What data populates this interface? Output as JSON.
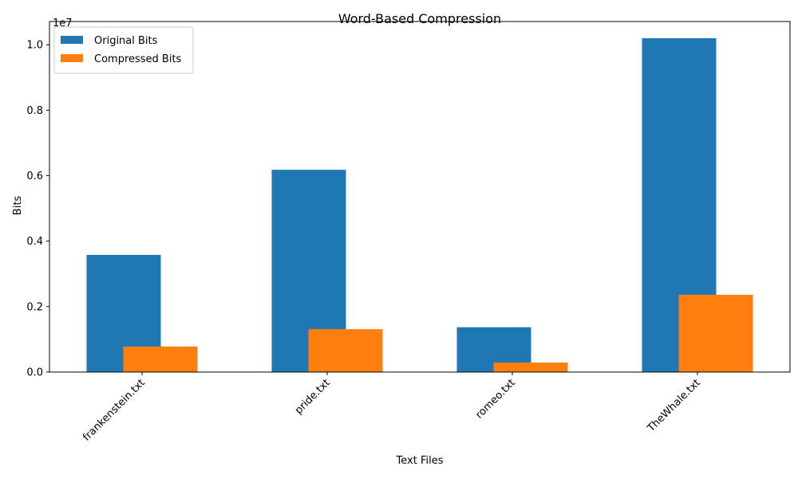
{
  "chart_data": {
    "type": "bar",
    "title": "Word-Based Compression",
    "xlabel": "Text Files",
    "ylabel": "Bits",
    "y_offset_label": "1e7",
    "y_scale": 10000000,
    "ylim": [
      0,
      10710000
    ],
    "yticks": [
      0,
      2000000,
      4000000,
      6000000,
      8000000,
      10000000
    ],
    "ytick_labels": [
      "0.0",
      "0.2",
      "0.4",
      "0.6",
      "0.8",
      "1.0"
    ],
    "categories": [
      "frankenstein.txt",
      "pride.txt",
      "romeo.txt",
      "TheWhale.txt"
    ],
    "series": [
      {
        "name": "Original Bits",
        "color": "#1f77b4",
        "values": [
          3580000,
          6180000,
          1370000,
          10200000
        ]
      },
      {
        "name": "Compressed Bits",
        "color": "#ff7f0e",
        "values": [
          780000,
          1310000,
          290000,
          2360000
        ]
      }
    ],
    "legend_position": "upper-left",
    "grid": false
  }
}
